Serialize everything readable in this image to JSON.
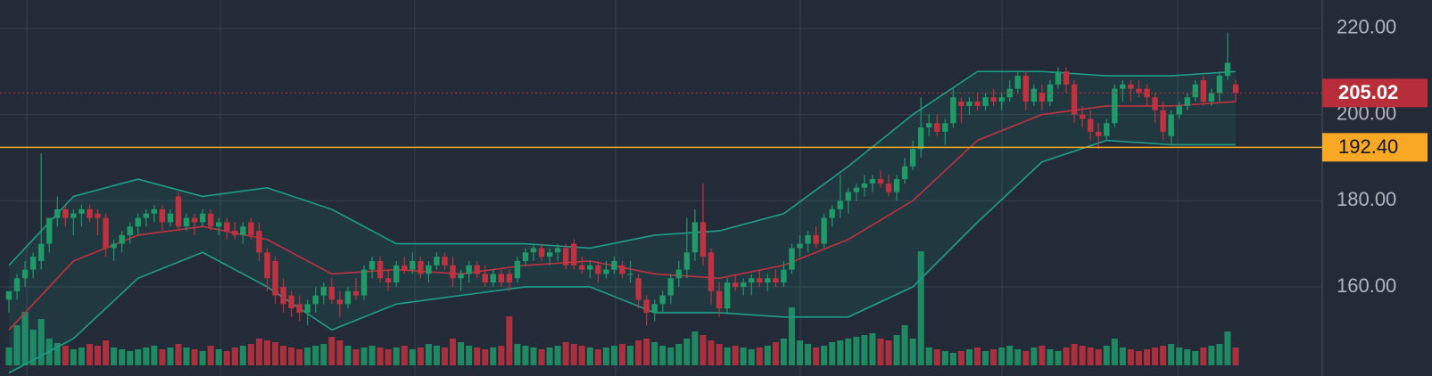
{
  "chart_data": {
    "type": "candlestick",
    "ylim": [
      139.3,
      226.6
    ],
    "yticks": [
      {
        "value": 160,
        "label": "160.00"
      },
      {
        "value": 180,
        "label": "180.00"
      },
      {
        "value": 200,
        "label": "200.00"
      },
      {
        "value": 220,
        "label": "220.00"
      }
    ],
    "grid": true,
    "up_color": "#1f9a68",
    "down_color": "#c2313f",
    "ohlc": [
      [
        157,
        159,
        154,
        159
      ],
      [
        159,
        163,
        157,
        162
      ],
      [
        162,
        166,
        160,
        164
      ],
      [
        164,
        168,
        162,
        167
      ],
      [
        166,
        191,
        164,
        170
      ],
      [
        170,
        176,
        168,
        176
      ],
      [
        176,
        181,
        174,
        178
      ],
      [
        178,
        179,
        174,
        176
      ],
      [
        176,
        178,
        172,
        177
      ],
      [
        177,
        179,
        174,
        178
      ],
      [
        178,
        179,
        175,
        176
      ],
      [
        177,
        178,
        172,
        176
      ],
      [
        176,
        177,
        167,
        169
      ],
      [
        169,
        171,
        166,
        170
      ],
      [
        170,
        173,
        168,
        172
      ],
      [
        172,
        175,
        170,
        174
      ],
      [
        174,
        177,
        172,
        176
      ],
      [
        176,
        178,
        174,
        177
      ],
      [
        177,
        179,
        175,
        178
      ],
      [
        178,
        179,
        173,
        175
      ],
      [
        175,
        178,
        174,
        177
      ],
      [
        181,
        182,
        173,
        174
      ],
      [
        174,
        177,
        173,
        176
      ],
      [
        176,
        177,
        172,
        175
      ],
      [
        175,
        178,
        174,
        177
      ],
      [
        177,
        178,
        173,
        174
      ],
      [
        174,
        176,
        172,
        175
      ],
      [
        175,
        176,
        171,
        173
      ],
      [
        173,
        175,
        171,
        172
      ],
      [
        172,
        175,
        170,
        174
      ],
      [
        175,
        176,
        171,
        172
      ],
      [
        173,
        175,
        166,
        168
      ],
      [
        168,
        169,
        159,
        162
      ],
      [
        166,
        167,
        156,
        158
      ],
      [
        160,
        162,
        154,
        156
      ],
      [
        158,
        159,
        153,
        155
      ],
      [
        156,
        158,
        152,
        154
      ],
      [
        154,
        157,
        151,
        156
      ],
      [
        156,
        160,
        154,
        158
      ],
      [
        158,
        161,
        156,
        160
      ],
      [
        160,
        162,
        156,
        157
      ],
      [
        157,
        159,
        153,
        156
      ],
      [
        156,
        160,
        155,
        159
      ],
      [
        159,
        162,
        157,
        158
      ],
      [
        158,
        165,
        157,
        164
      ],
      [
        164,
        167,
        162,
        166
      ],
      [
        166,
        167,
        161,
        162
      ],
      [
        162,
        164,
        159,
        161
      ],
      [
        161,
        166,
        160,
        165
      ],
      [
        165,
        167,
        163,
        164
      ],
      [
        164,
        168,
        163,
        166
      ],
      [
        166,
        167,
        162,
        163
      ],
      [
        163,
        166,
        161,
        165
      ],
      [
        165,
        168,
        164,
        167
      ],
      [
        167,
        168,
        164,
        165
      ],
      [
        165,
        167,
        160,
        162
      ],
      [
        162,
        164,
        159,
        163
      ],
      [
        163,
        166,
        161,
        165
      ],
      [
        165,
        166,
        162,
        163
      ],
      [
        163,
        165,
        160,
        161
      ],
      [
        161,
        164,
        160,
        163
      ],
      [
        163,
        164,
        160,
        161
      ],
      [
        163,
        164,
        159,
        161
      ],
      [
        162,
        167,
        161,
        166
      ],
      [
        166,
        169,
        165,
        168
      ],
      [
        168,
        170,
        166,
        169
      ],
      [
        169,
        170,
        166,
        167
      ],
      [
        167,
        169,
        165,
        168
      ],
      [
        168,
        170,
        166,
        169
      ],
      [
        169,
        170,
        164,
        165
      ],
      [
        170,
        171,
        164,
        165
      ],
      [
        165,
        167,
        163,
        164
      ],
      [
        164,
        166,
        162,
        165
      ],
      [
        165,
        166,
        161,
        163
      ],
      [
        163,
        166,
        162,
        164
      ],
      [
        164,
        167,
        163,
        166
      ],
      [
        165,
        166,
        162,
        163
      ],
      [
        163,
        166,
        161,
        163
      ],
      [
        162,
        163,
        155,
        157
      ],
      [
        157,
        158,
        151,
        154
      ],
      [
        154,
        157,
        152,
        156
      ],
      [
        156,
        159,
        154,
        158
      ],
      [
        158,
        163,
        156,
        162
      ],
      [
        162,
        166,
        160,
        164
      ],
      [
        164,
        176,
        162,
        168
      ],
      [
        168,
        178,
        166,
        175
      ],
      [
        175,
        184,
        165,
        167
      ],
      [
        168,
        169,
        156,
        159
      ],
      [
        159,
        161,
        153,
        155
      ],
      [
        155,
        162,
        154,
        161
      ],
      [
        161,
        163,
        159,
        160
      ],
      [
        160,
        162,
        158,
        161
      ],
      [
        161,
        163,
        158,
        162
      ],
      [
        162,
        164,
        160,
        161
      ],
      [
        161,
        163,
        159,
        162
      ],
      [
        162,
        164,
        160,
        161
      ],
      [
        161,
        166,
        160,
        164
      ],
      [
        164,
        170,
        163,
        169
      ],
      [
        169,
        172,
        167,
        170
      ],
      [
        170,
        173,
        168,
        172
      ],
      [
        172,
        174,
        169,
        170
      ],
      [
        170,
        177,
        169,
        176
      ],
      [
        176,
        179,
        174,
        178
      ],
      [
        178,
        186,
        176,
        180
      ],
      [
        180,
        183,
        177,
        182
      ],
      [
        182,
        184,
        180,
        183
      ],
      [
        183,
        186,
        181,
        184
      ],
      [
        184,
        186,
        182,
        185
      ],
      [
        185,
        187,
        183,
        184
      ],
      [
        184,
        186,
        181,
        182
      ],
      [
        182,
        186,
        180,
        185
      ],
      [
        185,
        190,
        184,
        188
      ],
      [
        188,
        194,
        187,
        192
      ],
      [
        192,
        204,
        190,
        197
      ],
      [
        197,
        200,
        195,
        198
      ],
      [
        198,
        200,
        195,
        196
      ],
      [
        196,
        199,
        193,
        198
      ],
      [
        198,
        206,
        197,
        204
      ],
      [
        203,
        204,
        198,
        202
      ],
      [
        202,
        204,
        200,
        203
      ],
      [
        203,
        205,
        201,
        202
      ],
      [
        202,
        205,
        201,
        204
      ],
      [
        204,
        206,
        202,
        203
      ],
      [
        203,
        205,
        201,
        204
      ],
      [
        204,
        208,
        203,
        206
      ],
      [
        206,
        210,
        205,
        209
      ],
      [
        209,
        210,
        201,
        203
      ],
      [
        203,
        207,
        202,
        206
      ],
      [
        205,
        207,
        201,
        203
      ],
      [
        203,
        208,
        202,
        207
      ],
      [
        207,
        211,
        206,
        210
      ],
      [
        210,
        211,
        205,
        207
      ],
      [
        207,
        208,
        198,
        200
      ],
      [
        200,
        202,
        197,
        199
      ],
      [
        199,
        201,
        194,
        196
      ],
      [
        196,
        198,
        192,
        195
      ],
      [
        195,
        199,
        194,
        198
      ],
      [
        198,
        207,
        197,
        206
      ],
      [
        206,
        208,
        203,
        207
      ],
      [
        207,
        208,
        203,
        206
      ],
      [
        206,
        208,
        204,
        205
      ],
      [
        206,
        207,
        202,
        204
      ],
      [
        204,
        205,
        198,
        201
      ],
      [
        201,
        203,
        194,
        196
      ],
      [
        195,
        201,
        193,
        200
      ],
      [
        200,
        203,
        199,
        202
      ],
      [
        202,
        205,
        201,
        204
      ],
      [
        204,
        208,
        203,
        207
      ],
      [
        208,
        209,
        202,
        203
      ],
      [
        203,
        206,
        202,
        205
      ],
      [
        205,
        210,
        203,
        209
      ],
      [
        209,
        219,
        208,
        212
      ],
      [
        207,
        208,
        203,
        205.02
      ]
    ],
    "volume": [
      20,
      45,
      60,
      40,
      52,
      30,
      25,
      22,
      18,
      20,
      24,
      22,
      28,
      20,
      18,
      16,
      18,
      20,
      22,
      18,
      20,
      24,
      20,
      18,
      16,
      22,
      18,
      16,
      20,
      22,
      24,
      30,
      28,
      26,
      22,
      20,
      18,
      20,
      22,
      24,
      32,
      28,
      22,
      18,
      20,
      22,
      20,
      18,
      20,
      22,
      18,
      20,
      24,
      22,
      20,
      30,
      26,
      22,
      20,
      18,
      20,
      22,
      55,
      24,
      22,
      20,
      18,
      20,
      22,
      26,
      24,
      22,
      20,
      18,
      20,
      22,
      24,
      22,
      28,
      30,
      26,
      22,
      20,
      24,
      30,
      38,
      34,
      28,
      24,
      20,
      22,
      20,
      18,
      20,
      22,
      26,
      30,
      65,
      28,
      24,
      20,
      22,
      26,
      28,
      30,
      32,
      34,
      36,
      30,
      28,
      34,
      45,
      30,
      128,
      20,
      18,
      16,
      14,
      16,
      18,
      20,
      16,
      18,
      20,
      22,
      18,
      16,
      20,
      22,
      18,
      16,
      20,
      24,
      22,
      20,
      18,
      22,
      30,
      20,
      18,
      16,
      18,
      20,
      22,
      24,
      20,
      18,
      16,
      20,
      22,
      24,
      38,
      20
    ],
    "bands": {
      "x": [
        0,
        8,
        16,
        24,
        32,
        40,
        48,
        56,
        64,
        72,
        80,
        88,
        96,
        104,
        112,
        120,
        128,
        136,
        144,
        152
      ],
      "upper": [
        165,
        181,
        185,
        181,
        183,
        178,
        170,
        170,
        170,
        169,
        172,
        173,
        177,
        188,
        200,
        210,
        210,
        209,
        209,
        210
      ],
      "middle": [
        150,
        166,
        172,
        174,
        171,
        163,
        164,
        163,
        165,
        166,
        163,
        162,
        165,
        171,
        180,
        194,
        200,
        202,
        202,
        203
      ],
      "lower": [
        140,
        148,
        162,
        168,
        160,
        150,
        156,
        158,
        160,
        160,
        154,
        154,
        153,
        153,
        160,
        175,
        189,
        194,
        193,
        193
      ],
      "band_color": "#1f9e8a",
      "middle_color": "#c2313f"
    },
    "price_lines": [
      {
        "value": 205.02,
        "label": "205.02",
        "color": "#b72d3a"
      },
      {
        "value": 192.4,
        "label": "192.40",
        "color": "#f9a825"
      }
    ]
  }
}
